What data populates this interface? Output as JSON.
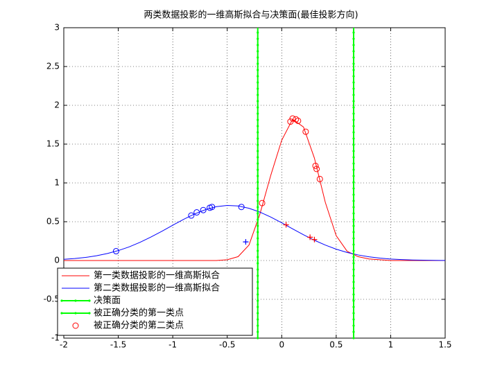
{
  "chart_data": {
    "type": "line",
    "title": "两类数据投影的一维高斯拟合与决策面(最佳投影方向)",
    "x": [
      -2.0,
      -1.9,
      -1.8,
      -1.7,
      -1.6,
      -1.5,
      -1.4,
      -1.3,
      -1.2,
      -1.1,
      -1.0,
      -0.9,
      -0.8,
      -0.7,
      -0.6,
      -0.5,
      -0.4,
      -0.3,
      -0.2,
      -0.1,
      0.0,
      0.1,
      0.2,
      0.3,
      0.4,
      0.5,
      0.6,
      0.7,
      0.8,
      0.9,
      1.0,
      1.1,
      1.2,
      1.3,
      1.4,
      1.5
    ],
    "series": [
      {
        "name": "第一类数据投影的一维高斯拟合",
        "color": "#ff0000",
        "values": [
          0,
          0,
          0,
          0,
          0,
          0,
          0,
          0,
          0,
          0,
          0,
          0,
          0,
          0,
          0,
          0.01,
          0.05,
          0.2,
          0.6,
          1.1,
          1.55,
          1.82,
          1.72,
          1.32,
          0.75,
          0.32,
          0.12,
          0.05,
          0.02,
          0.01,
          0,
          0,
          0,
          0,
          0,
          0
        ]
      },
      {
        "name": "第二类数据投影的一维高斯拟合",
        "color": "#0000ff",
        "values": [
          0.016,
          0.026,
          0.04,
          0.061,
          0.09,
          0.128,
          0.176,
          0.235,
          0.303,
          0.377,
          0.455,
          0.531,
          0.6,
          0.655,
          0.694,
          0.71,
          0.703,
          0.673,
          0.624,
          0.56,
          0.486,
          0.408,
          0.332,
          0.261,
          0.199,
          0.146,
          0.104,
          0.072,
          0.048,
          0.031,
          0.019,
          0.012,
          0.007,
          0.004,
          0.002,
          0.001
        ]
      },
      {
        "name": "决策面",
        "color": "#00ff00",
        "xline": -0.22
      },
      {
        "name": "被正确分类的第一类点",
        "color": "#00ff00",
        "xline": 0.66
      },
      {
        "name": "被正确分类的第二类点",
        "color": "#ff0000",
        "marker": "o",
        "x": [
          -0.18,
          0.08,
          0.1,
          0.13,
          0.15,
          0.22,
          0.31,
          0.32,
          0.35
        ],
        "values": [
          0.74,
          1.79,
          1.83,
          1.82,
          1.8,
          1.66,
          1.22,
          1.18,
          1.05
        ]
      },
      {
        "color": "#0000ff",
        "marker": "o",
        "x": [
          -1.52,
          -0.83,
          -0.78,
          -0.72,
          -0.66,
          -0.64,
          -0.37
        ],
        "values": [
          0.12,
          0.58,
          0.62,
          0.65,
          0.68,
          0.69,
          0.69
        ]
      },
      {
        "color": "#ff0000",
        "marker": "+",
        "x": [
          0.04,
          0.26,
          0.3
        ],
        "values": [
          0.46,
          0.3,
          0.27
        ]
      },
      {
        "color": "#0000ff",
        "marker": "+",
        "x": [
          -0.33
        ],
        "values": [
          0.24
        ]
      }
    ],
    "xlim": [
      -2,
      1.5
    ],
    "xticks": [
      -2,
      -1.5,
      -1,
      -0.5,
      0,
      0.5,
      1,
      1.5
    ],
    "ylim": [
      -1,
      3
    ],
    "yticks": [
      -1,
      -0.5,
      0,
      0.5,
      1,
      1.5,
      2,
      2.5,
      3
    ],
    "grid": true,
    "legend": "lower left"
  }
}
